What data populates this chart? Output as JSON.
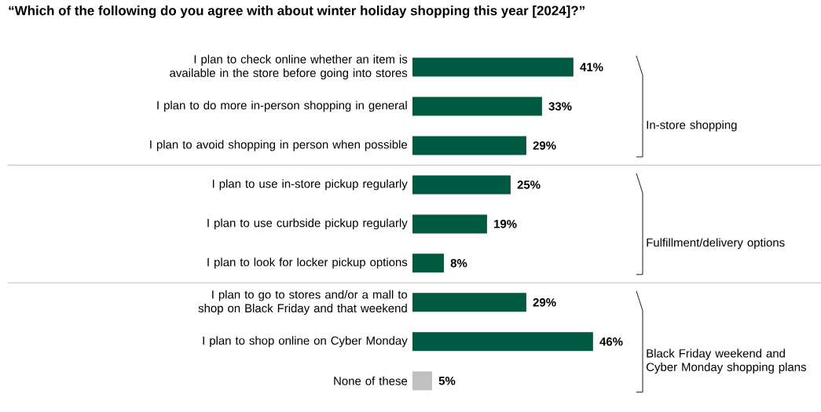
{
  "chart_data": {
    "type": "bar",
    "orientation": "horizontal",
    "title": "“Which of the following do you agree with about winter holiday shopping this year [2024]?”",
    "categories": [
      "I plan to check online whether an item is available in the store before going into stores",
      "I plan to do more in-person shopping in general",
      "I plan to avoid shopping in person when possible",
      "I plan to use in-store pickup regularly",
      "I plan to use curbside pickup regularly",
      "I plan to look for locker pickup options",
      "I plan to go to stores and/or a mall to shop on Black Friday and that weekend",
      "I plan to shop online on Cyber Monday",
      "None of these"
    ],
    "values": [
      41,
      33,
      29,
      25,
      19,
      8,
      29,
      46,
      5
    ],
    "value_labels": [
      "41%",
      "33%",
      "29%",
      "25%",
      "19%",
      "8%",
      "29%",
      "46%",
      "5%"
    ],
    "colors": [
      "#005a42",
      "#005a42",
      "#005a42",
      "#005a42",
      "#005a42",
      "#005a42",
      "#005a42",
      "#005a42",
      "#c0c0c0"
    ],
    "annotations": [
      "In-store shopping",
      "Fulfillment/delivery options",
      "Black Friday weekend and Cyber Monday shopping plans"
    ]
  }
}
